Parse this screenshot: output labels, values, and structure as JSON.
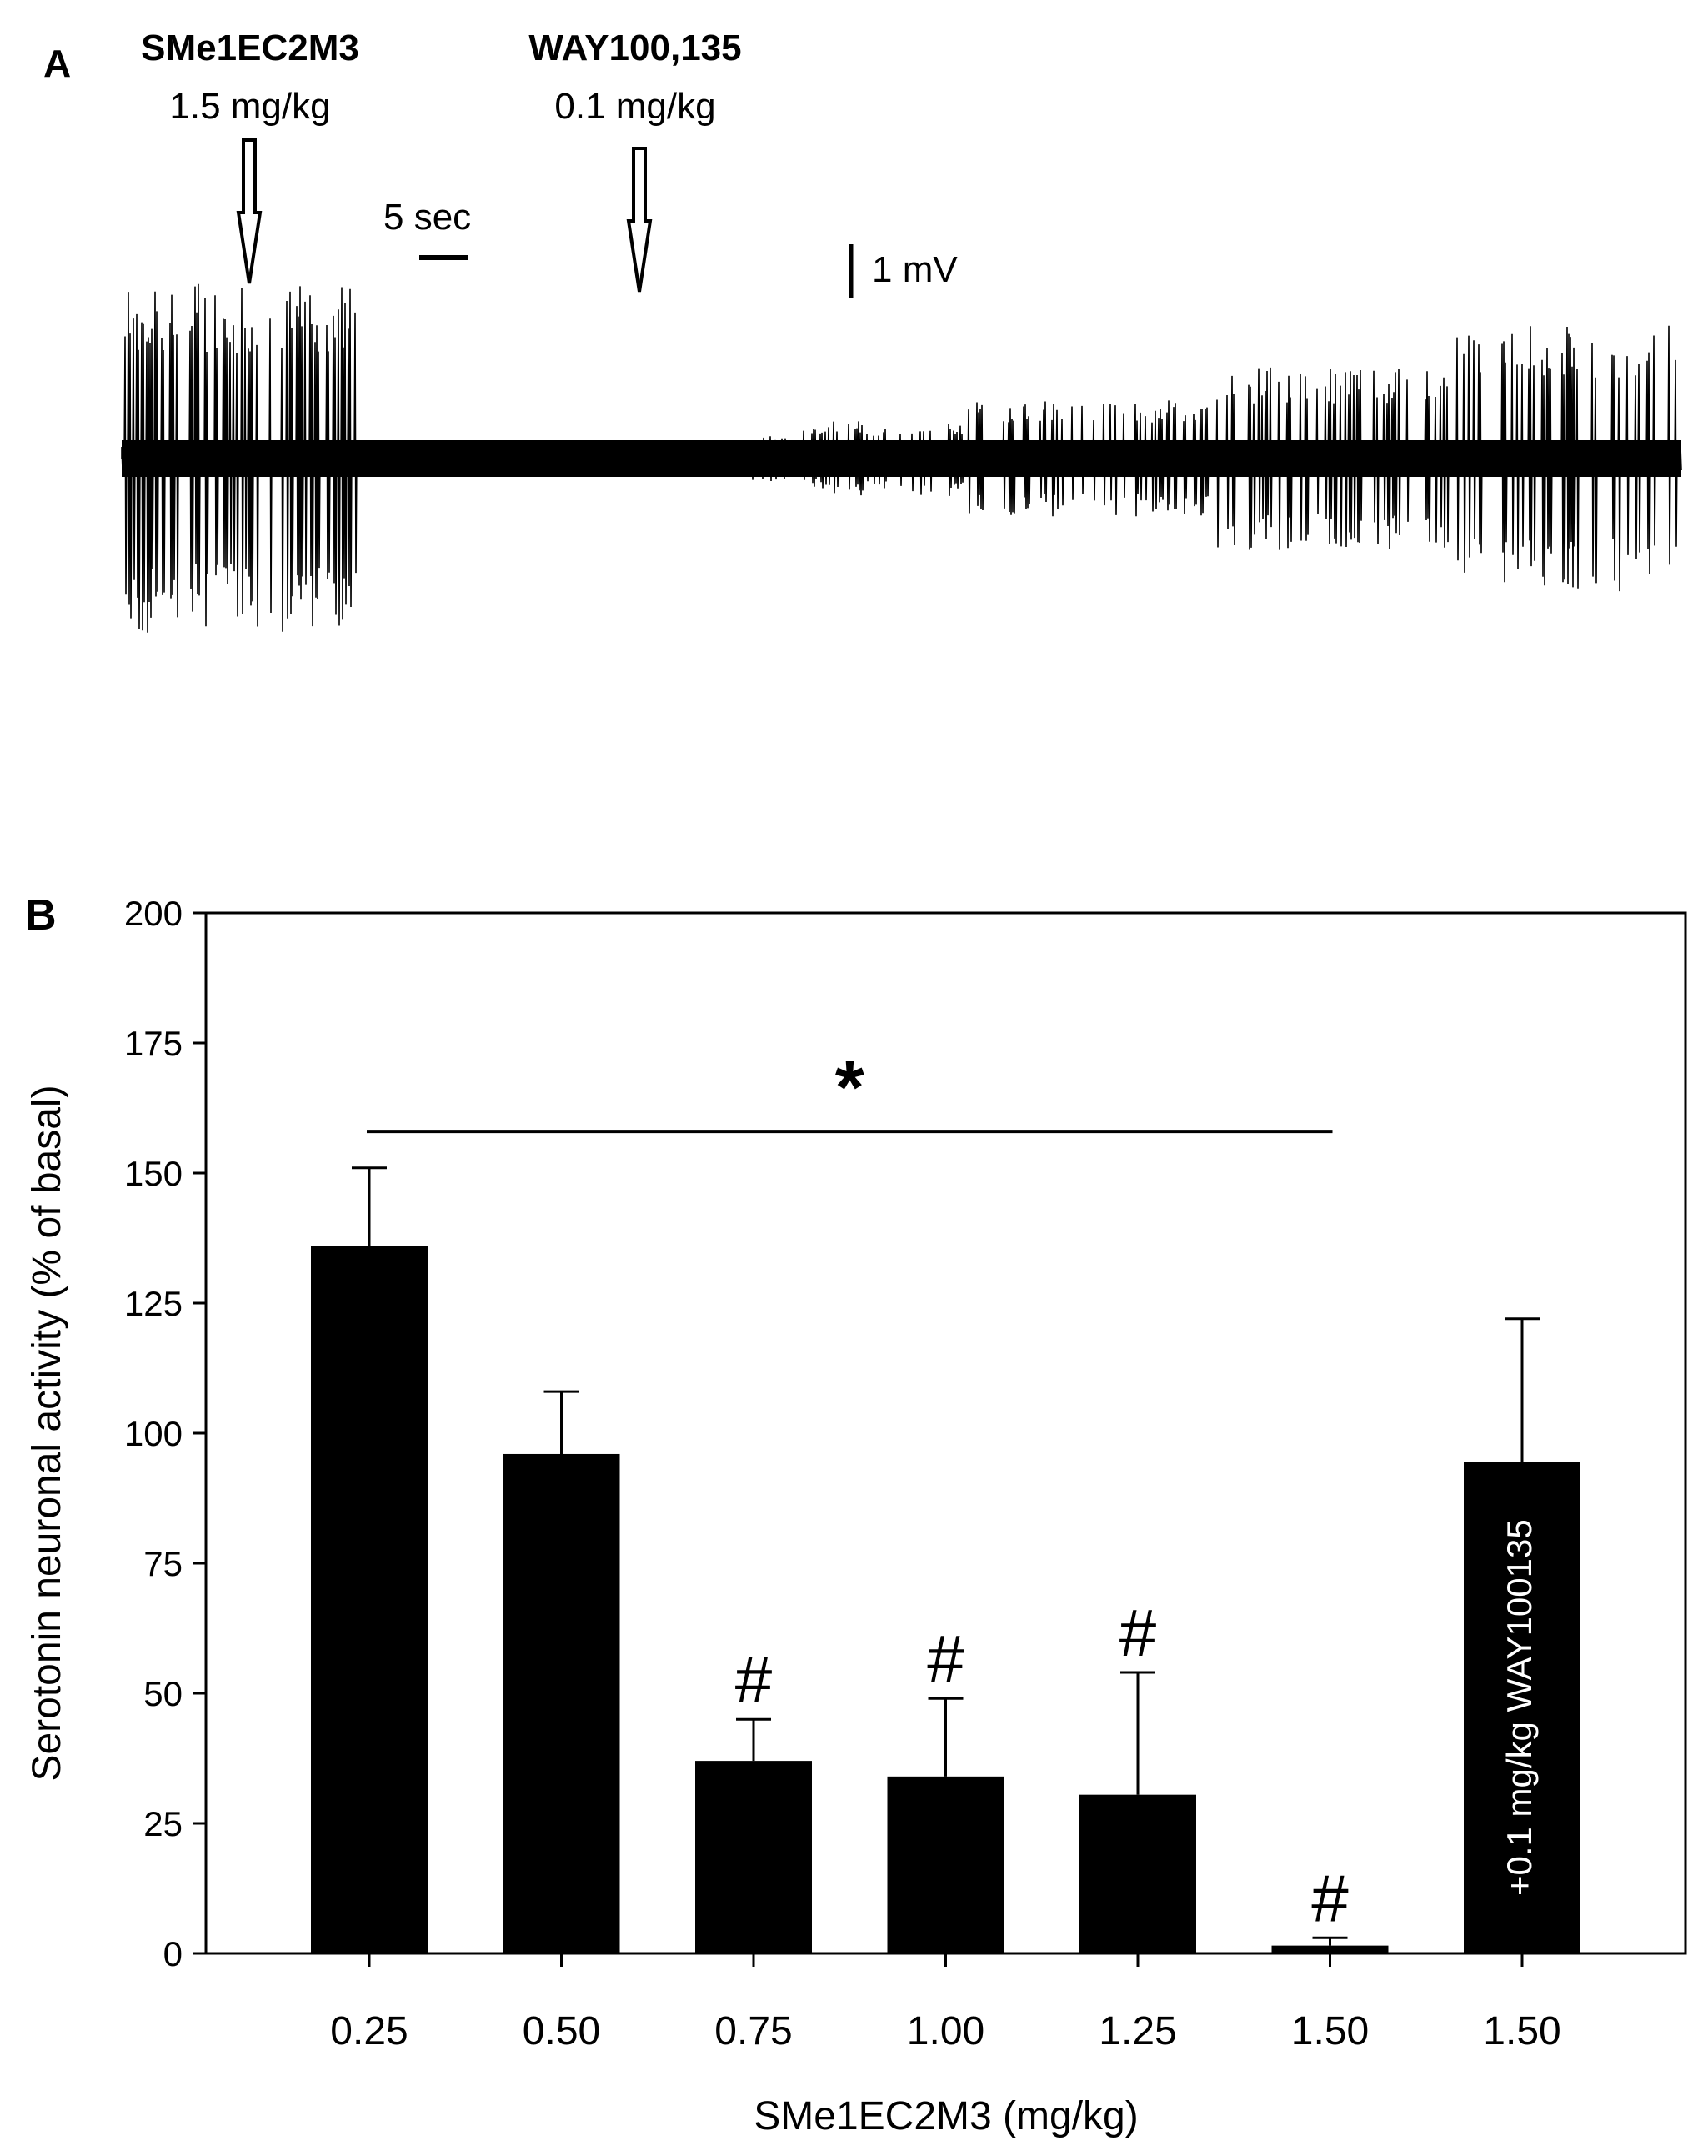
{
  "panel_a": {
    "label": "A",
    "drug1": {
      "name": "SMe1EC2M3",
      "dose": "1.5 mg/kg"
    },
    "drug2": {
      "name": "WAY100,135",
      "dose": "0.1 mg/kg"
    },
    "time_scale": "5 sec",
    "voltage_scale": "1 mV"
  },
  "chart_data": {
    "type": "bar",
    "panel_label": "B",
    "title": "",
    "xlabel": "SMe1EC2M3 (mg/kg)",
    "ylabel": "Serotonin neuronal activity (% of basal)",
    "ylim": [
      0,
      200
    ],
    "yticks": [
      0,
      25,
      50,
      75,
      100,
      125,
      150,
      175,
      200
    ],
    "grid": false,
    "categories": [
      "0.25",
      "0.50",
      "0.75",
      "1.00",
      "1.25",
      "1.50",
      "1.50"
    ],
    "values": [
      136,
      96,
      37,
      34,
      30.5,
      1.5,
      94.5
    ],
    "errors": [
      15,
      12,
      8,
      15,
      23.5,
      1.5,
      27.5
    ],
    "bar_color": "#000000",
    "markers": [
      "",
      "",
      "#",
      "#",
      "#",
      "#",
      ""
    ],
    "bar_inner_labels": [
      "",
      "",
      "",
      "",
      "",
      "",
      "+0.1 mg/kg WAY100135"
    ],
    "significance": {
      "symbol": "*",
      "from_index": 0,
      "to_index": 5,
      "y": 158
    }
  }
}
